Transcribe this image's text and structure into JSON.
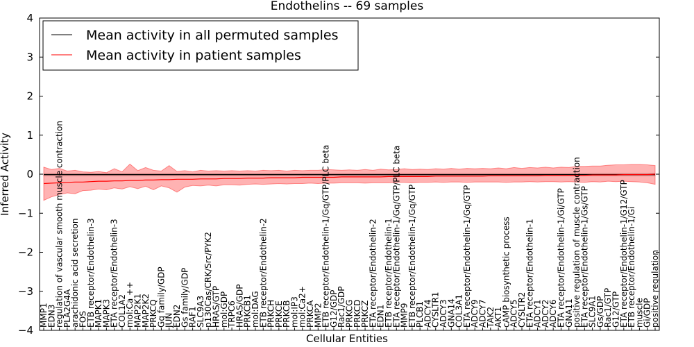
{
  "chart_data": {
    "type": "line",
    "title": "Endothelins -- 69 samples",
    "xlabel": "Cellular Entities",
    "ylabel": "Inferred Activity",
    "ylim": [
      -4,
      4
    ],
    "yticks": [
      -4,
      -3,
      -2,
      -1,
      0,
      1,
      2,
      3,
      4
    ],
    "grid": false,
    "legend_position": "top-left",
    "categories": [
      "MMP1",
      "EDN3",
      "regulation of vascular smooth muscle contraction",
      "PLA2G4A",
      "arachidonic acid secretion",
      "FOS",
      "ETB receptor/Endothelin-3",
      "MAPK1",
      "MAPK3",
      "ETA receptor/Endothelin-3",
      "COL1A2",
      "mol:Ca ++",
      "MAP2K1",
      "MAP2K2",
      "PRKCQ",
      "Gq family/GDP",
      "JUN",
      "EDN2",
      "Gs family/GDP",
      "RAF1",
      "SLC9A3",
      "p130Cas/CRK/Src/PYK2",
      "HRAS/GTP",
      "mol:GDP",
      "TRPC6",
      "HRAS/GDP",
      "PRKCB1",
      "mol:DAG",
      "ETB receptor/Endothelin-2",
      "PRKCH",
      "PRKCE",
      "PRKCB",
      "mol:IP3",
      "mol:Ca2+",
      "PRKCA",
      "MMP2",
      "ETB receptor/Endothelin-1/Gq/GTP/PLC beta",
      "G12/GDP",
      "Rac1/GDP",
      "PRKCG",
      "PRKCD",
      "PRKCZ",
      "ETA receptor/Endothelin-2",
      "EDN1",
      "ETB receptor/Endothelin-1",
      "ETA receptor/Endothelin-1/Gq/GTP/PLC beta",
      "MMP9",
      "ETB receptor/Endothelin-1/Gq/GTP",
      "PLCB1",
      "ADCY4",
      "CYSLTR1",
      "ADCY3",
      "GNA14",
      "COL3A1",
      "ETA receptor/Endothelin-1/Gq/GTP",
      "ADCY9",
      "ADCY7",
      "TAK2",
      "AKT1",
      "cAMP biosynthetic process",
      "ADCY5",
      "CYSLTR2",
      "ETA receptor/Endothelin-1",
      "ADCY1",
      "ADCY2",
      "ADCY6",
      "ETA receptor/Endothelin-1/Gi/GTP",
      "GNA11",
      "positive regulation of muscle contraction",
      "ETA receptor/Endothelin-1/Gs/GTP",
      "SLC9A1",
      "Gs/GDP",
      "Rac1/GTP",
      "G12/GTP",
      "ETA receptor/Endothelin-1/G12/GTP",
      "ETB receptor/Endothelin-1/Gi",
      "muscle",
      "Gi/GDP",
      "positive regulation"
    ],
    "series": [
      {
        "name": "Mean activity in all permuted samples",
        "color": "#000000",
        "values": [
          -0.01,
          -0.01,
          -0.01,
          -0.01,
          -0.01,
          -0.01,
          -0.01,
          -0.01,
          -0.01,
          -0.01,
          -0.01,
          -0.01,
          -0.01,
          -0.01,
          -0.01,
          -0.01,
          -0.01,
          -0.01,
          -0.01,
          -0.01,
          -0.01,
          -0.01,
          -0.01,
          -0.01,
          -0.01,
          -0.01,
          -0.01,
          -0.01,
          -0.01,
          -0.01,
          -0.01,
          -0.01,
          -0.01,
          -0.01,
          -0.01,
          -0.01,
          -0.01,
          -0.01,
          -0.01,
          -0.01,
          -0.01,
          -0.01,
          -0.01,
          -0.01,
          -0.01,
          -0.01,
          -0.01,
          -0.01,
          -0.01,
          -0.01,
          -0.01,
          -0.01,
          -0.01,
          -0.01,
          -0.01,
          -0.01,
          -0.01,
          -0.01,
          -0.01,
          -0.01,
          -0.01,
          -0.01,
          -0.01,
          -0.01,
          -0.01,
          -0.01,
          -0.01,
          -0.01,
          -0.01,
          -0.01,
          -0.01,
          -0.01,
          -0.01,
          -0.01,
          -0.01,
          -0.01,
          -0.01,
          -0.01,
          -0.01
        ],
        "band": {
          "color": "#888888",
          "lower": [
            -0.04,
            -0.04,
            -0.04,
            -0.04,
            -0.04,
            -0.04,
            -0.04,
            -0.04,
            -0.04,
            -0.04,
            -0.04,
            -0.04,
            -0.04,
            -0.04,
            -0.04,
            -0.04,
            -0.04,
            -0.04,
            -0.04,
            -0.04,
            -0.04,
            -0.04,
            -0.04,
            -0.04,
            -0.04,
            -0.04,
            -0.04,
            -0.04,
            -0.04,
            -0.04,
            -0.04,
            -0.04,
            -0.04,
            -0.04,
            -0.04,
            -0.04,
            -0.04,
            -0.04,
            -0.04,
            -0.04,
            -0.04,
            -0.04,
            -0.04,
            -0.04,
            -0.04,
            -0.04,
            -0.04,
            -0.04,
            -0.04,
            -0.04,
            -0.04,
            -0.04,
            -0.04,
            -0.04,
            -0.04,
            -0.04,
            -0.04,
            -0.04,
            -0.04,
            -0.04,
            -0.04,
            -0.04,
            -0.04,
            -0.04,
            -0.04,
            -0.04,
            -0.04,
            -0.04,
            -0.04,
            -0.04,
            -0.04,
            -0.04,
            -0.04,
            -0.04,
            -0.04,
            -0.04,
            -0.04,
            -0.04,
            -0.04
          ],
          "upper": [
            0.02,
            0.02,
            0.02,
            0.02,
            0.02,
            0.02,
            0.02,
            0.02,
            0.02,
            0.02,
            0.02,
            0.02,
            0.02,
            0.02,
            0.02,
            0.02,
            0.02,
            0.02,
            0.02,
            0.02,
            0.02,
            0.02,
            0.02,
            0.02,
            0.02,
            0.02,
            0.02,
            0.02,
            0.02,
            0.02,
            0.02,
            0.02,
            0.02,
            0.02,
            0.02,
            0.02,
            0.02,
            0.02,
            0.02,
            0.02,
            0.02,
            0.02,
            0.02,
            0.02,
            0.02,
            0.02,
            0.02,
            0.02,
            0.02,
            0.02,
            0.02,
            0.02,
            0.02,
            0.02,
            0.02,
            0.02,
            0.02,
            0.02,
            0.02,
            0.02,
            0.02,
            0.02,
            0.02,
            0.02,
            0.02,
            0.02,
            0.02,
            0.02,
            0.02,
            0.02,
            0.02,
            0.02,
            0.02,
            0.02,
            0.02,
            0.02,
            0.02,
            0.02,
            0.02
          ]
        }
      },
      {
        "name": "Mean activity in patient samples",
        "color": "#ff0000",
        "values": [
          -0.24,
          -0.23,
          -0.22,
          -0.21,
          -0.2,
          -0.2,
          -0.19,
          -0.18,
          -0.18,
          -0.17,
          -0.17,
          -0.16,
          -0.16,
          -0.15,
          -0.15,
          -0.14,
          -0.14,
          -0.13,
          -0.13,
          -0.13,
          -0.12,
          -0.12,
          -0.12,
          -0.11,
          -0.11,
          -0.11,
          -0.1,
          -0.1,
          -0.1,
          -0.09,
          -0.09,
          -0.09,
          -0.09,
          -0.08,
          -0.08,
          -0.08,
          -0.08,
          -0.08,
          -0.07,
          -0.07,
          -0.07,
          -0.07,
          -0.07,
          -0.07,
          -0.06,
          -0.06,
          -0.06,
          -0.06,
          -0.06,
          -0.06,
          -0.05,
          -0.05,
          -0.05,
          -0.05,
          -0.05,
          -0.05,
          -0.05,
          -0.04,
          -0.04,
          -0.04,
          -0.04,
          -0.04,
          -0.04,
          -0.04,
          -0.03,
          -0.03,
          -0.03,
          -0.03,
          -0.03,
          -0.03,
          -0.02,
          -0.02,
          -0.02,
          -0.02,
          -0.01,
          -0.01,
          -0.01,
          -0.01,
          0
        ],
        "band": {
          "color": "#ff0000",
          "lower": [
            -0.67,
            -0.58,
            -0.52,
            -0.48,
            -0.5,
            -0.42,
            -0.41,
            -0.38,
            -0.4,
            -0.35,
            -0.38,
            -0.32,
            -0.37,
            -0.31,
            -0.4,
            -0.3,
            -0.35,
            -0.46,
            -0.33,
            -0.29,
            -0.3,
            -0.28,
            -0.3,
            -0.27,
            -0.27,
            -0.28,
            -0.26,
            -0.25,
            -0.26,
            -0.25,
            -0.24,
            -0.25,
            -0.24,
            -0.24,
            -0.23,
            -0.24,
            -0.23,
            -0.23,
            -0.22,
            -0.22,
            -0.22,
            -0.23,
            -0.22,
            -0.22,
            -0.22,
            -0.21,
            -0.21,
            -0.22,
            -0.21,
            -0.21,
            -0.2,
            -0.21,
            -0.2,
            -0.2,
            -0.21,
            -0.2,
            -0.2,
            -0.2,
            -0.2,
            -0.21,
            -0.2,
            -0.2,
            -0.19,
            -0.2,
            -0.19,
            -0.19,
            -0.2,
            -0.19,
            -0.2,
            -0.21,
            -0.19,
            -0.2,
            -0.18,
            -0.19,
            -0.18,
            -0.19,
            -0.2,
            -0.22,
            -0.26
          ],
          "upper": [
            0.18,
            0.12,
            0.15,
            0.08,
            0.1,
            0.06,
            0.05,
            0.07,
            0.04,
            0.14,
            0.06,
            0.26,
            0.09,
            0.17,
            0.1,
            0.08,
            0.22,
            0.07,
            0.09,
            0.06,
            0.1,
            0.08,
            0.09,
            0.08,
            0.09,
            0.08,
            0.09,
            0.08,
            0.1,
            0.09,
            0.1,
            0.08,
            0.1,
            0.09,
            0.1,
            0.1,
            0.12,
            0.11,
            0.1,
            0.11,
            0.1,
            0.12,
            0.1,
            0.13,
            0.11,
            0.12,
            0.14,
            0.12,
            0.13,
            0.12,
            0.14,
            0.13,
            0.15,
            0.13,
            0.15,
            0.14,
            0.15,
            0.14,
            0.16,
            0.14,
            0.17,
            0.15,
            0.17,
            0.16,
            0.18,
            0.16,
            0.18,
            0.17,
            0.2,
            0.2,
            0.21,
            0.21,
            0.23,
            0.24,
            0.24,
            0.25,
            0.25,
            0.24,
            0.22
          ]
        }
      }
    ]
  }
}
